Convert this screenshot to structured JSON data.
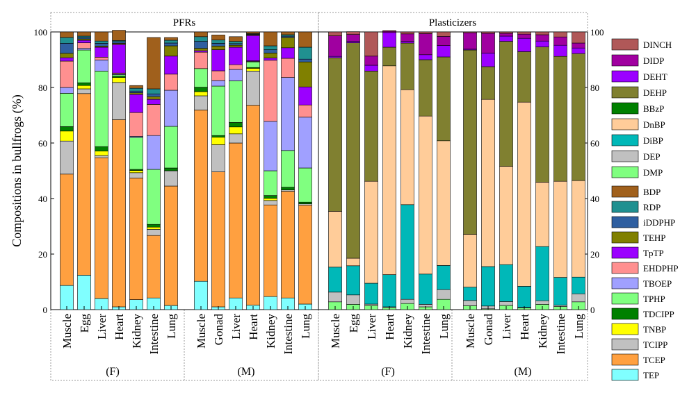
{
  "chart_data": {
    "type": "bar",
    "stacked": true,
    "ylabel": "Compositions in bullfrogs (%)",
    "ylim": [
      0,
      100
    ],
    "yticks": [
      0,
      20,
      40,
      60,
      80,
      100
    ],
    "panels": [
      {
        "title": "PFRs",
        "groups": [
          {
            "label": "(F)",
            "categories": [
              "Muscle",
              "Egg",
              "Liver",
              "Heart",
              "Kidney",
              "Intestine",
              "Lung"
            ]
          },
          {
            "label": "(M)",
            "categories": [
              "Muscle",
              "Gonad",
              "Liver",
              "Heart",
              "Kidney",
              "Intestine",
              "Lung"
            ]
          }
        ]
      },
      {
        "title": "Plasticizers",
        "groups": [
          {
            "label": "(F)",
            "categories": [
              "Muscle",
              "Egg",
              "Liver",
              "Heart",
              "Kidney",
              "Intestine",
              "Lung"
            ]
          },
          {
            "label": "(M)",
            "categories": [
              "Muscle",
              "Gonad",
              "Liver",
              "Heart",
              "Kidney",
              "Intestine",
              "Lung"
            ]
          }
        ]
      }
    ],
    "pfr_compounds": [
      "TEP",
      "TCEP",
      "TCIPP",
      "TNBP",
      "TDCIPP",
      "TPHP",
      "TBOEP",
      "EHDPHP",
      "TpTP",
      "TEHP",
      "iDDPHP",
      "RDP",
      "BDP"
    ],
    "pfr_colors": [
      "#80FFFF",
      "#FFA040",
      "#C0C0C0",
      "#FFFF00",
      "#008000",
      "#80FF80",
      "#A0A0FF",
      "#FF9090",
      "#9B00FF",
      "#808000",
      "#2F5FA0",
      "#209090",
      "#A0601C"
    ],
    "plasticizer_compounds": [
      "DMP",
      "DEP",
      "DiBP",
      "DnBP",
      "BBzP",
      "DEHP",
      "DEHT",
      "DIDP",
      "DINCH"
    ],
    "plasticizer_colors": [
      "#80FF80",
      "#C0C0C0",
      "#00B8B8",
      "#FFCC99",
      "#008000",
      "#808030",
      "#9B00FF",
      "#A000A0",
      "#B05858"
    ],
    "pfr_data": {
      "F": [
        [
          8.7,
          40.1,
          11.9,
          3.6,
          1.6,
          12.0,
          2.1,
          9.5,
          1.2,
          1.6,
          3.6,
          2.1,
          2.0
        ],
        [
          12.4,
          65.4,
          1.7,
          1.2,
          1.0,
          11.8,
          0.6,
          2.0,
          0.9,
          0.5,
          0.5,
          0.5,
          1.5
        ],
        [
          4.0,
          50.7,
          0.8,
          1.6,
          1.6,
          27.2,
          4.0,
          1.0,
          3.6,
          0.4,
          1.0,
          0.8,
          3.3
        ],
        [
          1.0,
          67.4,
          13.4,
          1.8,
          0.5,
          0.5,
          0.3,
          0.3,
          10.3,
          0.4,
          0.6,
          0.4,
          3.7
        ],
        [
          3.6,
          43.8,
          1.9,
          0.8,
          0.4,
          11.5,
          0.4,
          8.6,
          6.5,
          0.6,
          0.6,
          1.0,
          1.0
        ],
        [
          4.2,
          22.5,
          2.2,
          0.8,
          1.0,
          19.8,
          12.2,
          11.2,
          1.8,
          1.0,
          1.0,
          1.8,
          18.5
        ],
        [
          1.5,
          43.0,
          5.5,
          0.0,
          1.0,
          15.0,
          13.0,
          5.8,
          6.5,
          3.7,
          1.0,
          1.0,
          1.0
        ]
      ],
      "M": [
        [
          10.2,
          61.7,
          5.1,
          1.5,
          1.6,
          6.7,
          0.0,
          5.9,
          0.5,
          0.9,
          2.5,
          1.7,
          1.7
        ],
        [
          1.0,
          48.6,
          9.8,
          2.7,
          0.6,
          17.8,
          2.0,
          3.5,
          7.6,
          1.3,
          1.0,
          1.2,
          1.8
        ],
        [
          4.2,
          55.8,
          3.3,
          2.5,
          1.6,
          15.0,
          4.1,
          1.7,
          6.3,
          0.7,
          0.6,
          0.8,
          1.7
        ],
        [
          1.6,
          72.0,
          12.3,
          1.0,
          0.3,
          2.0,
          0.2,
          0.2,
          9.1,
          0.3,
          0.2,
          0.2,
          0.6
        ],
        [
          4.7,
          33.0,
          1.6,
          0.8,
          1.0,
          8.9,
          17.8,
          22.0,
          0.8,
          1.8,
          1.2,
          1.4,
          5.0
        ],
        [
          4.2,
          38.4,
          0.5,
          0.0,
          1.0,
          13.2,
          26.3,
          6.9,
          3.8,
          3.7,
          0.5,
          0.5,
          1.0
        ],
        [
          2.0,
          35.6,
          0.5,
          0.0,
          0.6,
          12.3,
          18.3,
          4.4,
          6.5,
          9.0,
          1.0,
          4.3,
          5.5
        ]
      ]
    },
    "plasticizer_data": {
      "F": [
        [
          2.8,
          3.5,
          9.0,
          20.1,
          0.0,
          55.3,
          0.5,
          7.4,
          1.4
        ],
        [
          1.9,
          3.4,
          10.5,
          2.7,
          0.0,
          77.6,
          0.5,
          2.5,
          1.0
        ],
        [
          1.5,
          0.5,
          7.5,
          36.7,
          0.0,
          39.7,
          2.1,
          3.3,
          8.7
        ],
        [
          0.7,
          0.3,
          11.6,
          75.2,
          0.0,
          6.7,
          5.3,
          0.4,
          0.3
        ],
        [
          2.2,
          1.5,
          34.1,
          41.4,
          0.0,
          16.8,
          0.6,
          2.7,
          0.7
        ],
        [
          1.0,
          0.9,
          10.9,
          56.9,
          0.0,
          20.3,
          1.8,
          7.6,
          0.6
        ],
        [
          3.7,
          3.5,
          8.7,
          44.9,
          0.0,
          30.2,
          4.1,
          3.3,
          1.6
        ]
      ],
      "M": [
        [
          1.4,
          1.9,
          4.8,
          19.0,
          0.0,
          66.4,
          0.3,
          5.9,
          0.3
        ],
        [
          0.3,
          1.0,
          14.2,
          60.2,
          0.0,
          11.8,
          4.9,
          7.1,
          0.5
        ],
        [
          1.5,
          1.4,
          13.3,
          35.4,
          0.0,
          45.0,
          1.9,
          1.0,
          0.5
        ],
        [
          0.6,
          0.2,
          7.6,
          66.3,
          0.0,
          18.2,
          4.8,
          1.5,
          0.8
        ],
        [
          1.9,
          1.3,
          19.5,
          23.2,
          0.0,
          48.7,
          2.1,
          2.3,
          1.0
        ],
        [
          1.1,
          0.5,
          10.0,
          34.6,
          0.0,
          45.0,
          4.0,
          3.0,
          1.8
        ],
        [
          2.8,
          2.9,
          6.0,
          34.8,
          0.0,
          45.7,
          2.0,
          1.8,
          4.0
        ]
      ]
    }
  }
}
